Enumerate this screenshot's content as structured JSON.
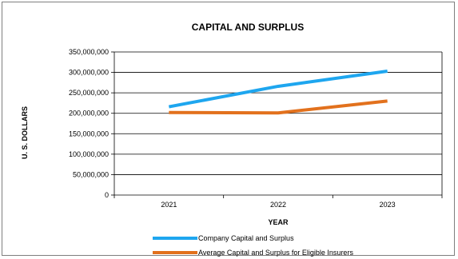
{
  "chart_data": {
    "type": "line",
    "title": "CAPITAL AND SURPLUS",
    "xlabel": "YEAR",
    "ylabel": "U. S. DOLLARS",
    "categories": [
      "2021",
      "2022",
      "2023"
    ],
    "ylim": [
      0,
      350000000
    ],
    "yticks": [
      0,
      50000000,
      100000000,
      150000000,
      200000000,
      250000000,
      300000000,
      350000000
    ],
    "ytick_labels": [
      "0",
      "50,000,000",
      "100,000,000",
      "150,000,000",
      "200,000,000",
      "250,000,000",
      "300,000,000",
      "350,000,000"
    ],
    "grid": true,
    "legend_position": "bottom",
    "series": [
      {
        "name": "Company Capital and Surplus",
        "color": "#1ea6ef",
        "values": [
          216000000,
          266000000,
          303000000
        ]
      },
      {
        "name": "Average Capital and Surplus for Eligible Insurers",
        "color": "#e2711d",
        "values": [
          202000000,
          201000000,
          230000000
        ]
      }
    ]
  }
}
